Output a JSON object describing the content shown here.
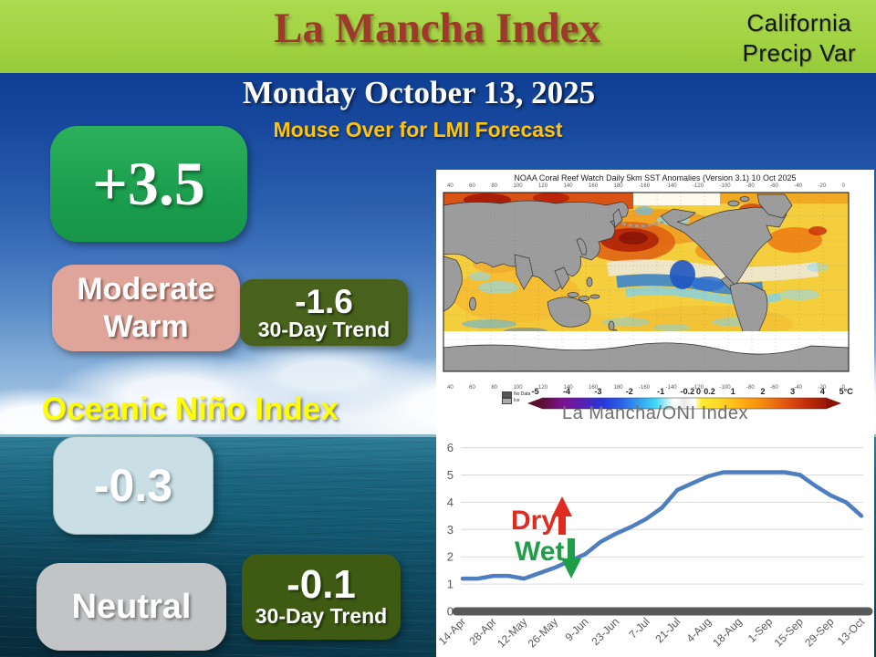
{
  "slide": {
    "title": "La Mancha Index",
    "corner_line1": "California",
    "corner_line2": "Precip Var",
    "date": "Monday October 13, 2025",
    "hover_hint": "Mouse Over for LMI Forecast"
  },
  "lmi": {
    "value": "+3.5",
    "status_line1": "Moderate",
    "status_line2": "Warm",
    "trend_value": "-1.6",
    "trend_label": "30-Day Trend"
  },
  "oni": {
    "heading": "Oceanic Niño Index",
    "value": "-0.3",
    "status": "Neutral",
    "trend_value": "-0.1",
    "trend_label": "30-Day Trend"
  },
  "map_panel": {
    "title": "NOAA Coral Reef Watch Daily 5km SST Anomalies (Version 3.1)   10 Oct 2025",
    "legend_no_data": "No Data",
    "legend_ice": "Ice",
    "colorbar_ticks": [
      "-5",
      "-4",
      "-3",
      "-2",
      "-1",
      "-0.2",
      "0",
      "0.2",
      "1",
      "2",
      "3",
      "4",
      "5°C"
    ],
    "lon_labels": [
      "40",
      "60",
      "80",
      "100",
      "120",
      "140",
      "160",
      "180",
      "-160",
      "-140",
      "-120",
      "-100",
      "-80",
      "-60",
      "-40",
      "-20",
      "0"
    ]
  },
  "annotations": {
    "dry_label": "Dry",
    "wet_label": "Wet"
  },
  "chart_data": {
    "type": "line",
    "title": "La Mancha/ONI Index",
    "x": [
      "14-Apr",
      "21-Apr",
      "28-Apr",
      "5-May",
      "12-May",
      "19-May",
      "26-May",
      "2-Jun",
      "9-Jun",
      "16-Jun",
      "23-Jun",
      "30-Jun",
      "7-Jul",
      "14-Jul",
      "21-Jul",
      "28-Jul",
      "4-Aug",
      "11-Aug",
      "18-Aug",
      "25-Aug",
      "1-Sep",
      "8-Sep",
      "15-Sep",
      "22-Sep",
      "29-Sep",
      "6-Oct",
      "13-Oct"
    ],
    "x_tick_labels": [
      "14-Apr",
      "28-Apr",
      "12-May",
      "26-May",
      "9-Jun",
      "23-Jun",
      "7-Jul",
      "21-Jul",
      "4-Aug",
      "18-Aug",
      "1-Sep",
      "15-Sep",
      "29-Sep",
      "13-Oct"
    ],
    "series": [
      {
        "name": "La Mancha/ONI Index",
        "color": "#4d7ebf",
        "values": [
          1.2,
          1.2,
          1.3,
          1.3,
          1.2,
          1.4,
          1.6,
          1.85,
          2.1,
          2.55,
          2.85,
          3.1,
          3.4,
          3.8,
          4.45,
          4.7,
          4.95,
          5.1,
          5.1,
          5.1,
          5.1,
          5.1,
          5.0,
          4.6,
          4.25,
          4.0,
          3.5
        ]
      }
    ],
    "baseline": {
      "value": 0,
      "color": "#595959"
    },
    "ylim": [
      0,
      6
    ],
    "y_ticks": [
      0,
      1,
      2,
      3,
      4,
      5,
      6
    ],
    "grid": "horizontal-major",
    "legend": "none"
  },
  "colors": {
    "header_green": "#a2d343",
    "title_red": "#9e392b",
    "hint_gold": "#ffc20d",
    "lmi_green": "#1b9e4e",
    "status_salmon": "#dfa49a",
    "trend_olive": "#48611c",
    "oni_heading_yellow": "#ffff00",
    "oni_lightblue": "#c9dfe5",
    "neutral_gray": "#c2c4c6",
    "line_blue": "#4d7ebf",
    "dry_red": "#e02b20",
    "wet_green": "#1f9e48"
  }
}
